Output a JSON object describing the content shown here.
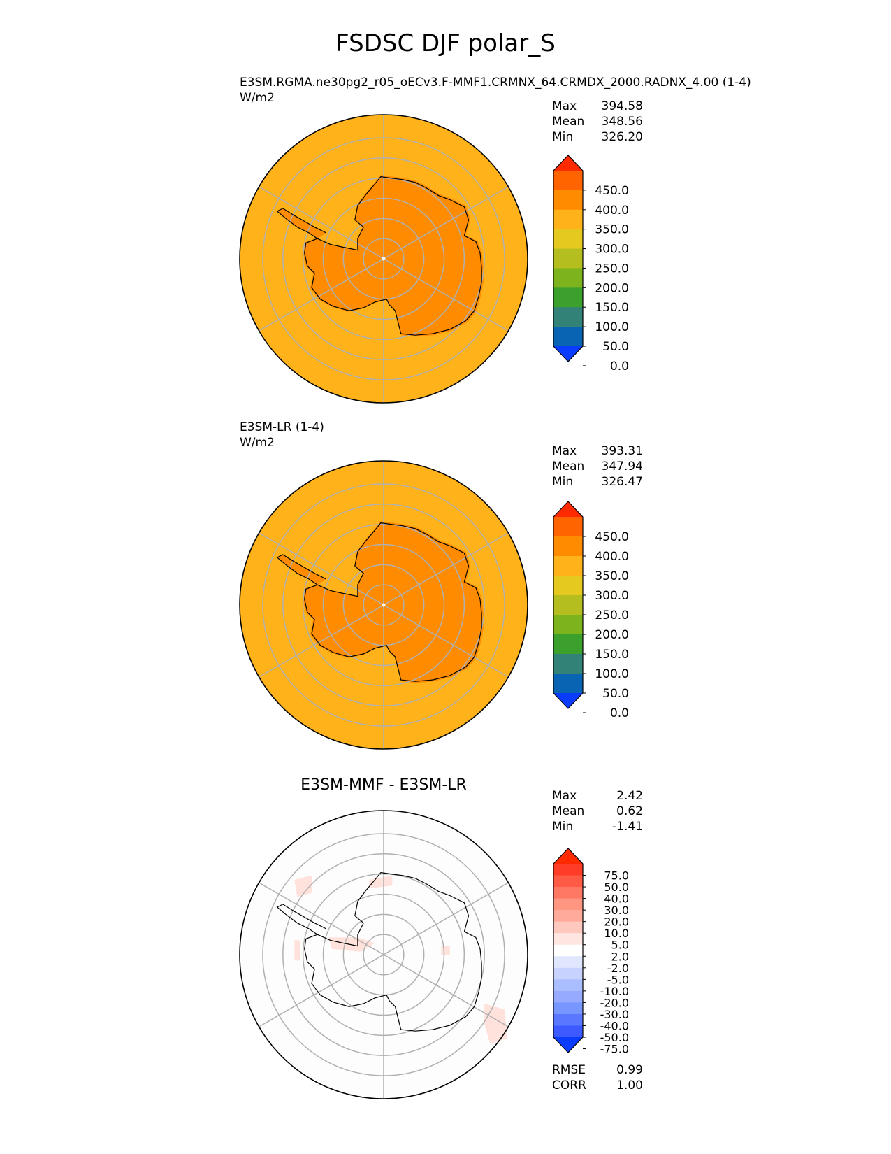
{
  "figure": {
    "title": "FSDSC DJF polar_S"
  },
  "panels": [
    {
      "title": "E3SM.RGMA.ne30pg2_r05_oECv3.F-MMF1.CRMNX_64.CRMDX_2000.RADNX_4.00 (1-4)",
      "units": "W/m2",
      "stats": [
        {
          "label": "Max",
          "value": "394.58"
        },
        {
          "label": "Mean",
          "value": "348.56"
        },
        {
          "label": "Min",
          "value": "326.20"
        }
      ]
    },
    {
      "title": "E3SM-LR (1-4)",
      "units": "W/m2",
      "stats": [
        {
          "label": "Max",
          "value": "393.31"
        },
        {
          "label": "Mean",
          "value": "347.94"
        },
        {
          "label": "Min",
          "value": "326.47"
        }
      ]
    },
    {
      "title": "E3SM-MMF - E3SM-LR",
      "stats": [
        {
          "label": "Max",
          "value": "2.42"
        },
        {
          "label": "Mean",
          "value": "0.62"
        },
        {
          "label": "Min",
          "value": "-1.41"
        }
      ],
      "metrics": [
        {
          "label": "RMSE",
          "value": "0.99"
        },
        {
          "label": "CORR",
          "value": "1.00"
        }
      ]
    }
  ],
  "chart_data": [
    {
      "type": "heatmap",
      "projection": "south-polar-stereographic",
      "title": "E3SM.RGMA.ne30pg2_r05_oECv3.F-MMF1.CRMNX_64.CRMDX_2000.RADNX_4.00 (1-4)",
      "units": "W/m2",
      "field_values": {
        "ocean_band": 325,
        "antarctica": 375
      },
      "colorbar": {
        "ticks": [
          "450.0",
          "400.0",
          "350.0",
          "300.0",
          "250.0",
          "200.0",
          "150.0",
          "100.0",
          "50.0",
          "0.0"
        ],
        "colors": [
          "#ff2a00",
          "#ff6400",
          "#ff8c00",
          "#ffb21a",
          "#e6c91e",
          "#b4be1e",
          "#7db41e",
          "#3ca02d",
          "#328278",
          "#0a64b4",
          "#0a3cff"
        ],
        "extend": "both"
      }
    },
    {
      "type": "heatmap",
      "projection": "south-polar-stereographic",
      "title": "E3SM-LR (1-4)",
      "units": "W/m2",
      "field_values": {
        "ocean_band": 325,
        "antarctica": 375
      },
      "colorbar": {
        "ticks": [
          "450.0",
          "400.0",
          "350.0",
          "300.0",
          "250.0",
          "200.0",
          "150.0",
          "100.0",
          "50.0",
          "0.0"
        ],
        "colors": [
          "#ff2a00",
          "#ff6400",
          "#ff8c00",
          "#ffb21a",
          "#e6c91e",
          "#b4be1e",
          "#7db41e",
          "#3ca02d",
          "#328278",
          "#0a64b4",
          "#0a3cff"
        ],
        "extend": "both"
      }
    },
    {
      "type": "heatmap",
      "projection": "south-polar-stereographic",
      "title": "E3SM-MMF - E3SM-LR",
      "colorbar": {
        "ticks": [
          "75.0",
          "50.0",
          "40.0",
          "30.0",
          "20.0",
          "10.0",
          "5.0",
          "2.0",
          "-2.0",
          "-5.0",
          "-10.0",
          "-20.0",
          "-30.0",
          "-40.0",
          "-50.0",
          "-75.0"
        ],
        "colors": [
          "#ff2a00",
          "#ff3c28",
          "#ff5a46",
          "#ff7864",
          "#ff9682",
          "#ffaa9b",
          "#ffc8be",
          "#ffe6e1",
          "#ffffff",
          "#e1e6ff",
          "#c8d2ff",
          "#aabeff",
          "#96aaff",
          "#7896ff",
          "#5a78ff",
          "#3c5aff",
          "#0a3cff"
        ],
        "extend": "both"
      }
    }
  ],
  "colors": {
    "ocean": "#ffb21a",
    "land": "#ff8c00",
    "grid": "#b0b0b0",
    "diff_positive": "#ffe2dc"
  }
}
